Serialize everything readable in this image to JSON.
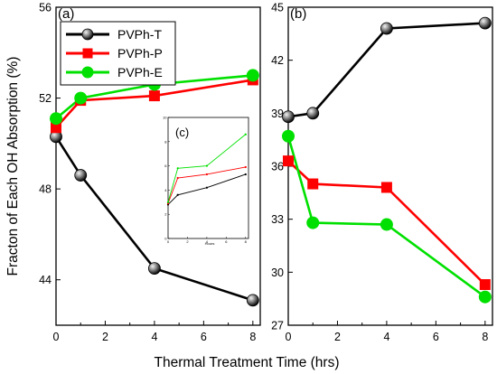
{
  "chart_data": [
    {
      "panel": "(a)",
      "type": "line",
      "xlim": [
        0,
        8.3
      ],
      "ylim": [
        42,
        56
      ],
      "x_ticks": [
        0,
        2,
        4,
        6,
        8
      ],
      "y_ticks": [
        44,
        48,
        52,
        56
      ],
      "ylabel": "Fracton of Each OH Absorption (%)",
      "legend_position": "top-left",
      "series": [
        {
          "name": "PVPh-T",
          "color": "#000000",
          "marker": "sphere",
          "x": [
            0,
            1,
            4,
            8
          ],
          "y": [
            50.3,
            48.6,
            44.5,
            43.1
          ]
        },
        {
          "name": "PVPh-P",
          "color": "#ff0000",
          "marker": "square",
          "x": [
            0,
            1,
            4,
            8
          ],
          "y": [
            50.7,
            51.9,
            52.1,
            52.8
          ]
        },
        {
          "name": "PVPh-E",
          "color": "#00e000",
          "marker": "circle",
          "x": [
            0,
            1,
            4,
            8
          ],
          "y": [
            51.1,
            52.0,
            52.6,
            53.0
          ]
        }
      ]
    },
    {
      "panel": "(b)",
      "type": "line",
      "xlim": [
        0,
        8.3
      ],
      "ylim": [
        27,
        45
      ],
      "x_ticks": [
        0,
        2,
        4,
        6,
        8
      ],
      "y_ticks": [
        27,
        30,
        33,
        36,
        39,
        42,
        45
      ],
      "series": [
        {
          "color": "#000000",
          "marker": "sphere",
          "x": [
            0,
            1,
            4,
            8
          ],
          "y": [
            38.8,
            39.0,
            43.8,
            44.1
          ]
        },
        {
          "color": "#ff0000",
          "marker": "square",
          "x": [
            0,
            1,
            4,
            8
          ],
          "y": [
            36.3,
            35.0,
            34.8,
            29.3
          ]
        },
        {
          "color": "#00e000",
          "marker": "circle",
          "x": [
            0,
            1,
            4,
            8
          ],
          "y": [
            37.7,
            32.8,
            32.7,
            28.6
          ]
        }
      ]
    },
    {
      "panel": "(c)",
      "type": "line",
      "inset": true,
      "xlim": [
        0,
        8.3
      ],
      "ylim": [
        0,
        10
      ],
      "x_ticks": [
        0,
        2,
        4,
        6,
        8
      ],
      "y_ticks": [
        0,
        2,
        4,
        6,
        8,
        10
      ],
      "xlabel": "Hours",
      "series": [
        {
          "color": "#000000",
          "x": [
            0,
            1,
            4,
            8
          ],
          "y": [
            2.8,
            3.6,
            4.2,
            5.3
          ]
        },
        {
          "color": "#ff0000",
          "x": [
            0,
            1,
            4,
            8
          ],
          "y": [
            2.9,
            5.0,
            5.3,
            5.9
          ]
        },
        {
          "color": "#00e000",
          "x": [
            0,
            1,
            4,
            8
          ],
          "y": [
            3.0,
            5.8,
            6.0,
            8.6
          ]
        }
      ]
    }
  ],
  "shared_xlabel": "Thermal Treatment Time (hrs)"
}
